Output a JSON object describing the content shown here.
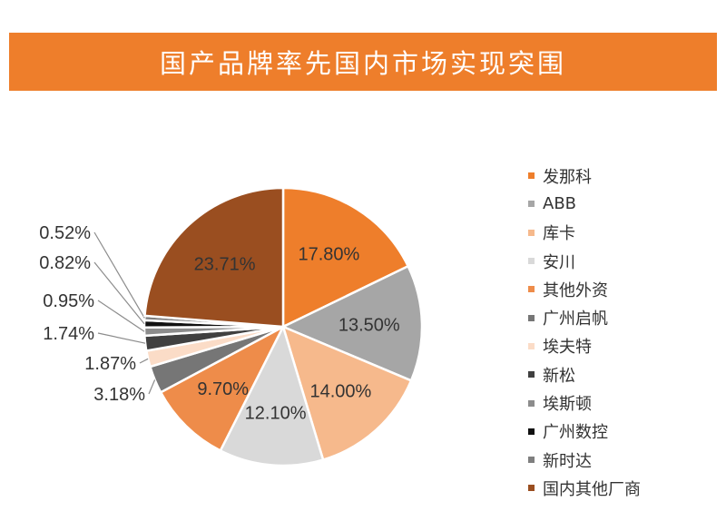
{
  "header": {
    "title": "国产品牌率先国内市场实现突围"
  },
  "chart_data": {
    "type": "pie",
    "title": "",
    "start_angle_deg": 0,
    "direction": "clockwise",
    "slices": [
      {
        "label": "发那科",
        "value": 17.8,
        "display": "17.80%",
        "color": "#ee7e2b",
        "label_pos": "inside",
        "text_color": "#333333"
      },
      {
        "label": "ABB",
        "value": 13.5,
        "display": "13.50%",
        "color": "#a6a6a6",
        "label_pos": "inside",
        "text_color": "#333333"
      },
      {
        "label": "库卡",
        "value": 14.0,
        "display": "14.00%",
        "color": "#f6b98c",
        "label_pos": "inside",
        "text_color": "#333333"
      },
      {
        "label": "安川",
        "value": 12.1,
        "display": "12.10%",
        "color": "#d9d9d9",
        "label_pos": "inside",
        "text_color": "#333333"
      },
      {
        "label": "其他外资",
        "value": 9.7,
        "display": "9.70%",
        "color": "#ee8c4a",
        "label_pos": "inside",
        "text_color": "#333333"
      },
      {
        "label": "广州启帆",
        "value": 3.18,
        "display": "3.18%",
        "color": "#767676",
        "label_pos": "outside",
        "text_color": "#333333"
      },
      {
        "label": "埃夫特",
        "value": 1.87,
        "display": "1.87%",
        "color": "#fbdcc7",
        "label_pos": "outside",
        "text_color": "#333333"
      },
      {
        "label": "新松",
        "value": 1.74,
        "display": "1.74%",
        "color": "#404040",
        "label_pos": "outside",
        "text_color": "#333333"
      },
      {
        "label": "埃斯顿",
        "value": 0.95,
        "display": "0.95%",
        "color": "#8c8c8c",
        "label_pos": "outside",
        "text_color": "#333333"
      },
      {
        "label": "广州数控",
        "value": 0.82,
        "display": "0.82%",
        "color": "#111111",
        "label_pos": "outside",
        "text_color": "#333333"
      },
      {
        "label": "新时达",
        "value": 0.52,
        "display": "0.52%",
        "color": "#7f7f7f",
        "label_pos": "outside",
        "text_color": "#333333"
      },
      {
        "label": "国内其他厂商",
        "value": 23.71,
        "display": "23.71%",
        "color": "#9a4e20",
        "label_pos": "inside",
        "text_color": "#333333"
      }
    ],
    "legend_position": "right"
  }
}
